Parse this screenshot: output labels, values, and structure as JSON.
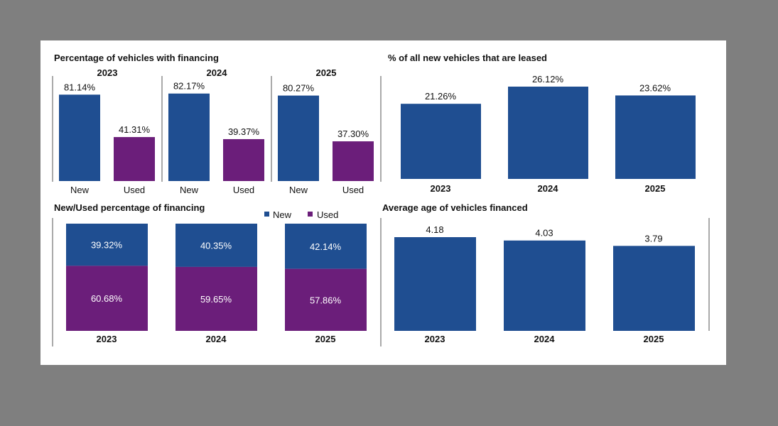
{
  "colors": {
    "new": "#1f4e91",
    "used": "#6b1e7a",
    "panel": "#ffffff",
    "backdrop": "#7f7f7f"
  },
  "chart_data": [
    {
      "id": "financing",
      "type": "bar",
      "title": "Percentage of vehicles with financing",
      "groups": [
        "2023",
        "2024",
        "2025"
      ],
      "categories": [
        "New",
        "Used"
      ],
      "values": [
        [
          81.14,
          41.31
        ],
        [
          82.17,
          39.37
        ],
        [
          80.27,
          37.3
        ]
      ],
      "labels": [
        [
          "81.14%",
          "41.31%"
        ],
        [
          "82.17%",
          "39.37%"
        ],
        [
          "80.27%",
          "37.30%"
        ]
      ],
      "ylim": [
        0,
        90
      ]
    },
    {
      "id": "leased",
      "type": "bar",
      "title": "% of all new vehicles that are leased",
      "categories": [
        "2023",
        "2024",
        "2025"
      ],
      "values": [
        21.26,
        26.12,
        23.62
      ],
      "labels": [
        "21.26%",
        "26.12%",
        "23.62%"
      ],
      "ylim": [
        0,
        27
      ]
    },
    {
      "id": "split",
      "type": "bar",
      "stacked": true,
      "title": "New/Used percentage of financing",
      "categories": [
        "2023",
        "2024",
        "2025"
      ],
      "legend": [
        "New",
        "Used"
      ],
      "series": [
        {
          "name": "New",
          "values": [
            39.32,
            40.35,
            42.14
          ],
          "labels": [
            "39.32%",
            "40.35%",
            "42.14%"
          ]
        },
        {
          "name": "Used",
          "values": [
            60.68,
            59.65,
            57.86
          ],
          "labels": [
            "60.68%",
            "59.65%",
            "57.86%"
          ]
        }
      ],
      "ylim": [
        0,
        100
      ]
    },
    {
      "id": "age",
      "type": "bar",
      "title": "Average age of vehicles financed",
      "categories": [
        "2023",
        "2024",
        "2025"
      ],
      "values": [
        4.18,
        4.03,
        3.79
      ],
      "labels": [
        "4.18",
        "4.03",
        "3.79"
      ],
      "ylim": [
        0,
        4.6
      ]
    }
  ]
}
